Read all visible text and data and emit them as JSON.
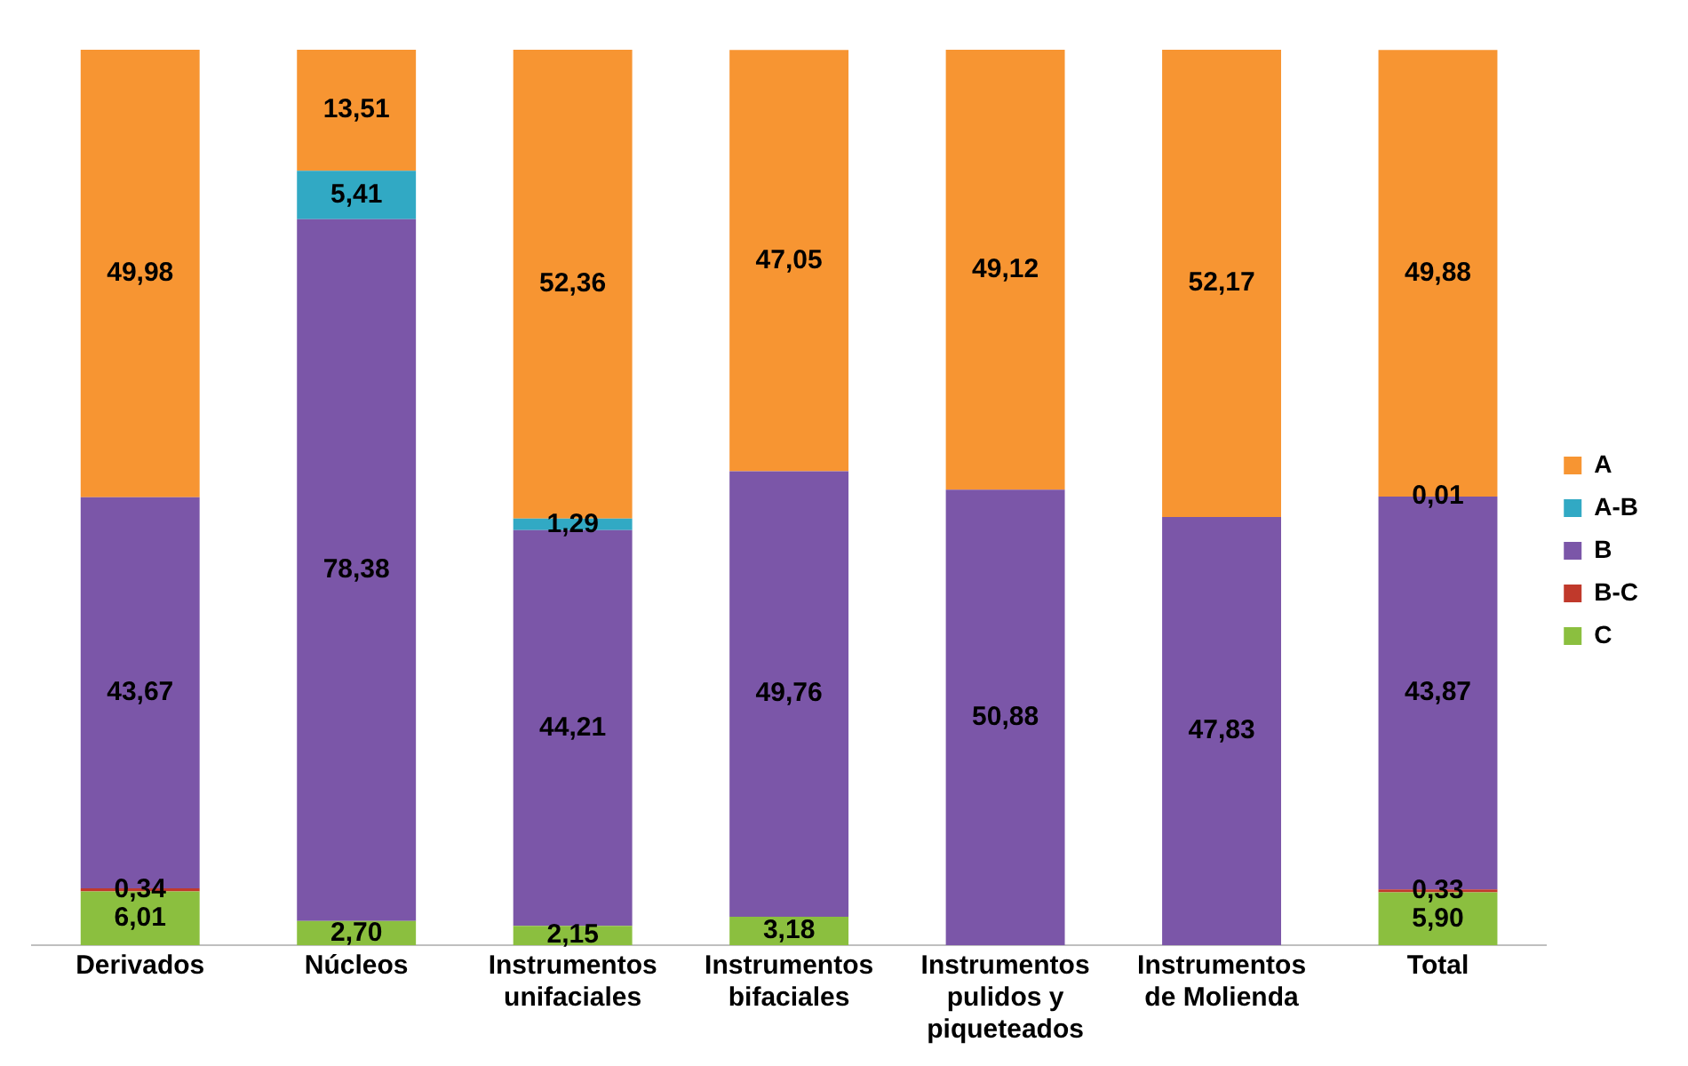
{
  "chart_data": {
    "type": "bar",
    "stacked": true,
    "legend": "right",
    "grid": false,
    "categories": [
      "Derivados",
      "Núcleos",
      "Instrumentos unifaciales",
      "Instrumentos bifaciales",
      "Instrumentos pulidos y piqueteados",
      "Instrumentos de Molienda",
      "Total"
    ],
    "series": [
      {
        "name": "C",
        "color": "#8bbf3f",
        "values": [
          6.01,
          2.7,
          2.15,
          3.18,
          null,
          null,
          5.9
        ],
        "value_labels": [
          "6,01",
          "2,70",
          "2,15",
          "3,18",
          null,
          null,
          "5,90"
        ]
      },
      {
        "name": "B-C",
        "color": "#c0392b",
        "values": [
          0.34,
          null,
          null,
          null,
          null,
          null,
          0.33
        ],
        "value_labels": [
          "0,34",
          null,
          null,
          null,
          null,
          null,
          "0,33"
        ]
      },
      {
        "name": "B",
        "color": "#7b56a8",
        "values": [
          43.67,
          78.38,
          44.21,
          49.76,
          50.88,
          47.83,
          43.87
        ],
        "value_labels": [
          "43,67",
          "78,38",
          "44,21",
          "49,76",
          "50,88",
          "47,83",
          "43,87"
        ]
      },
      {
        "name": "A-B",
        "color": "#31a9c4",
        "values": [
          null,
          5.41,
          1.29,
          null,
          null,
          null,
          0.01
        ],
        "value_labels": [
          null,
          "5,41",
          "1,29",
          null,
          null,
          null,
          "0,01"
        ]
      },
      {
        "name": "A",
        "color": "#f79532",
        "values": [
          49.98,
          13.51,
          52.36,
          47.05,
          49.12,
          52.17,
          49.88
        ],
        "value_labels": [
          "49,98",
          "13,51",
          "52,36",
          "47,05",
          "49,12",
          "52,17",
          "49,88"
        ]
      }
    ]
  }
}
